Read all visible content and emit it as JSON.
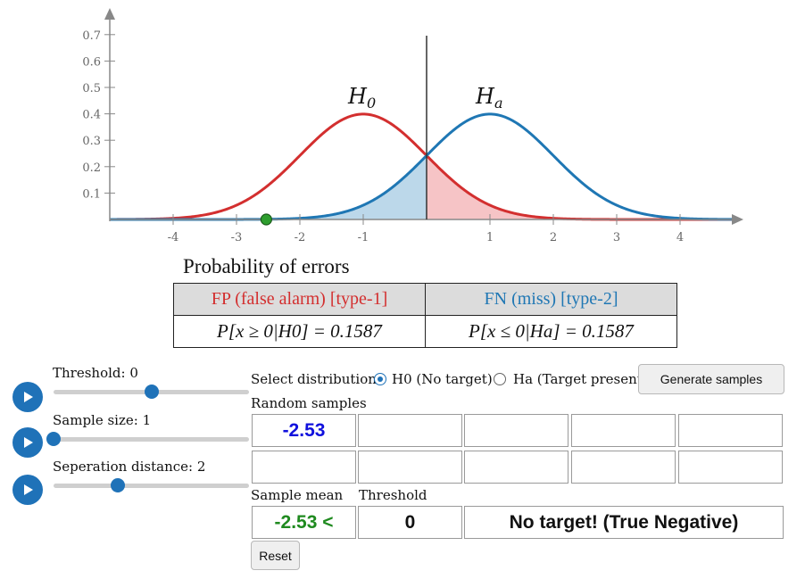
{
  "plot": {
    "y_ticks": [
      "0.7",
      "0.6",
      "0.5",
      "0.4",
      "0.3",
      "0.2",
      "0.1"
    ],
    "x_ticks": [
      "-4",
      "-3",
      "-2",
      "-1",
      "1",
      "2",
      "3",
      "4"
    ],
    "h0_label": "H",
    "h0_sub": "0",
    "ha_label": "H",
    "ha_sub": "a",
    "h0_color": "#d32f2f",
    "ha_color": "#1f77b4",
    "h0_mean": -1,
    "ha_mean": 1,
    "sd": 1,
    "threshold": 0,
    "sample_point": -2.53,
    "sample_point_color": "#2e9e2e"
  },
  "errors": {
    "title": "Probability of errors",
    "fp_header": "FP (false alarm) [type-1]",
    "fn_header": "FN (miss) [type-2]",
    "fp_formula": "P[x ≥ 0|H0] = 0.1587",
    "fn_formula": "P[x ≤ 0|Ha] = 0.1587"
  },
  "sliders": {
    "threshold_label": "Threshold: 0",
    "threshold_level": 0.5,
    "sample_size_label": "Sample size: 1",
    "sample_size_level": 0.0,
    "separation_label": "Seperation distance: 2",
    "separation_level": 0.33
  },
  "controls": {
    "select_label": "Select distribution",
    "h0_option": "H0 (No target)",
    "ha_option": "Ha (Target present)",
    "generate_button": "Generate samples",
    "random_samples_label": "Random samples",
    "samples": [
      "-2.53",
      "",
      "",
      "",
      "",
      "",
      "",
      "",
      "",
      ""
    ],
    "sample_mean_label": "Sample mean",
    "threshold_label": "Threshold",
    "sample_mean_value": "-2.53 <",
    "threshold_value": "0",
    "result_text": "No target! (True Negative)",
    "reset_button": "Reset",
    "sample_text_color": "#1010dd",
    "mean_text_color": "#1f8a1f"
  }
}
